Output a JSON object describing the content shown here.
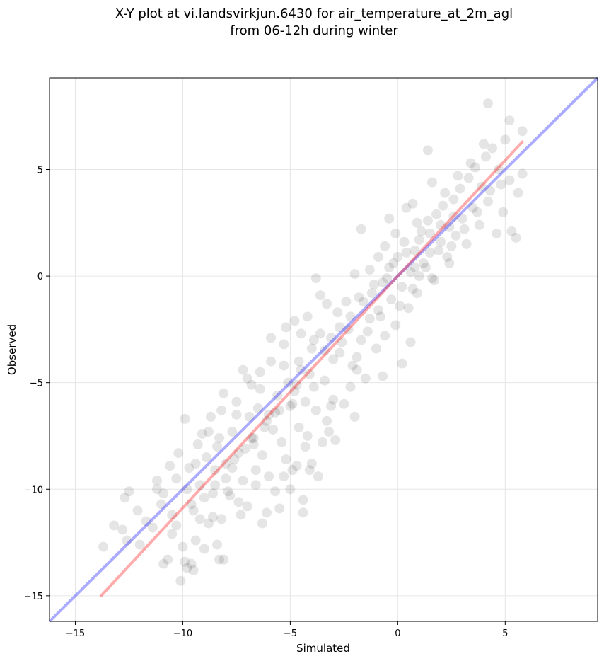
{
  "chart_data": {
    "type": "scatter",
    "title": [
      "X-Y plot at vi.landsvirkjun.6430 for air_temperature_at_2m_agl",
      "from 06-12h during winter"
    ],
    "xlabel": "Simulated",
    "ylabel": "Observed",
    "xlim": [
      -16.2,
      9.3
    ],
    "ylim": [
      -16.2,
      9.3
    ],
    "xticks": [
      -15,
      -10,
      -5,
      0,
      5
    ],
    "yticks": [
      -15,
      -10,
      -5,
      0,
      5
    ],
    "xtick_labels": [
      "−15",
      "−10",
      "−5",
      "0",
      "5"
    ],
    "ytick_labels": [
      "−15",
      "−10",
      "−5",
      "0",
      "5"
    ],
    "grid": true,
    "point_color": "#000000",
    "point_alpha": 0.1,
    "identity_line": {
      "color": "#0000ff",
      "alpha": 0.33,
      "x": [
        -16.2,
        9.3
      ],
      "y": [
        -16.2,
        9.3
      ]
    },
    "fit_line": {
      "color": "#ff0000",
      "alpha": 0.33,
      "x": [
        -13.8,
        5.8
      ],
      "y": [
        -15.0,
        6.3
      ]
    },
    "points": [
      [
        -13.7,
        -12.7
      ],
      [
        -13.2,
        -11.7
      ],
      [
        -12.8,
        -11.9
      ],
      [
        -12.6,
        -12.4
      ],
      [
        -12.5,
        -10.1
      ],
      [
        -12.7,
        -10.4
      ],
      [
        -12.1,
        -11.0
      ],
      [
        -12.0,
        -12.6
      ],
      [
        -11.7,
        -11.5
      ],
      [
        -11.4,
        -11.8
      ],
      [
        -11.2,
        -10.0
      ],
      [
        -11.0,
        -10.7
      ],
      [
        -10.9,
        -13.5
      ],
      [
        -10.7,
        -13.3
      ],
      [
        -10.5,
        -12.1
      ],
      [
        -10.3,
        -11.7
      ],
      [
        -10.1,
        -14.3
      ],
      [
        -10.0,
        -12.7
      ],
      [
        -9.9,
        -13.4
      ],
      [
        -9.8,
        -13.7
      ],
      [
        -9.6,
        -13.5
      ],
      [
        -9.5,
        -13.8
      ],
      [
        -10.2,
        -8.3
      ],
      [
        -9.9,
        -6.7
      ],
      [
        -9.4,
        -12.4
      ],
      [
        -9.2,
        -11.4
      ],
      [
        -9.0,
        -12.8
      ],
      [
        -8.8,
        -11.6
      ],
      [
        -8.6,
        -11.3
      ],
      [
        -8.4,
        -12.6
      ],
      [
        -8.3,
        -13.3
      ],
      [
        -8.1,
        -13.3
      ],
      [
        -10.5,
        -11.2
      ],
      [
        -10.3,
        -9.5
      ],
      [
        -9.8,
        -10.0
      ],
      [
        -9.7,
        -9.0
      ],
      [
        -9.4,
        -8.8
      ],
      [
        -9.2,
        -9.8
      ],
      [
        -9.1,
        -7.4
      ],
      [
        -8.9,
        -8.5
      ],
      [
        -8.7,
        -6.6
      ],
      [
        -8.5,
        -9.1
      ],
      [
        -8.3,
        -7.6
      ],
      [
        -8.2,
        -6.3
      ],
      [
        -8.0,
        -8.8
      ],
      [
        -7.9,
        -10.1
      ],
      [
        -7.7,
        -7.3
      ],
      [
        -7.5,
        -5.9
      ],
      [
        -7.4,
        -8.3
      ],
      [
        -7.2,
        -9.6
      ],
      [
        -7.0,
        -10.8
      ],
      [
        -6.9,
        -6.6
      ],
      [
        -6.7,
        -7.6
      ],
      [
        -6.6,
        -9.1
      ],
      [
        -6.4,
        -5.3
      ],
      [
        -6.3,
        -8.4
      ],
      [
        -6.1,
        -11.1
      ],
      [
        -6.0,
        -9.4
      ],
      [
        -5.8,
        -7.2
      ],
      [
        -5.7,
        -10.1
      ],
      [
        -5.5,
        -6.3
      ],
      [
        -5.3,
        -4.2
      ],
      [
        -5.2,
        -8.6
      ],
      [
        -5.0,
        -10.0
      ],
      [
        -4.9,
        -6.0
      ],
      [
        -4.7,
        -8.9
      ],
      [
        -4.6,
        -7.1
      ],
      [
        -4.4,
        -10.5
      ],
      [
        -4.3,
        -8.0
      ],
      [
        -4.1,
        -9.1
      ],
      [
        -7.2,
        -4.4
      ],
      [
        -6.8,
        -5.1
      ],
      [
        -6.4,
        -4.5
      ],
      [
        -6.1,
        -6.8
      ],
      [
        -5.9,
        -4.0
      ],
      [
        -5.6,
        -5.6
      ],
      [
        -5.3,
        -3.2
      ],
      [
        -5.1,
        -5.0
      ],
      [
        -4.8,
        -2.1
      ],
      [
        -4.5,
        -4.4
      ],
      [
        -4.3,
        -5.9
      ],
      [
        -4.0,
        -3.4
      ],
      [
        -3.8,
        -6.3
      ],
      [
        -3.6,
        -2.7
      ],
      [
        -3.4,
        -4.9
      ],
      [
        -3.2,
        -7.3
      ],
      [
        -3.0,
        -5.8
      ],
      [
        -2.8,
        -1.7
      ],
      [
        -2.7,
        -3.6
      ],
      [
        -2.5,
        -6.0
      ],
      [
        -2.3,
        -2.5
      ],
      [
        -2.1,
        -4.2
      ],
      [
        -2.0,
        -6.6
      ],
      [
        -1.8,
        -1.0
      ],
      [
        -1.7,
        -3.0
      ],
      [
        -1.5,
        -4.8
      ],
      [
        -1.3,
        -2.0
      ],
      [
        -1.2,
        -0.8
      ],
      [
        -1.0,
        -3.4
      ],
      [
        -0.9,
        -1.6
      ],
      [
        -0.7,
        -0.3
      ],
      [
        -0.6,
        -2.8
      ],
      [
        -0.4,
        0.4
      ],
      [
        -0.3,
        -1.1
      ],
      [
        -0.1,
        -2.3
      ],
      [
        0.0,
        0.9
      ],
      [
        0.2,
        -0.5
      ],
      [
        0.3,
        1.6
      ],
      [
        0.5,
        -1.5
      ],
      [
        0.6,
        0.2
      ],
      [
        0.8,
        1.2
      ],
      [
        0.9,
        -0.8
      ],
      [
        1.1,
        2.1
      ],
      [
        1.2,
        0.6
      ],
      [
        1.4,
        2.6
      ],
      [
        1.5,
        1.1
      ],
      [
        1.7,
        -0.2
      ],
      [
        1.8,
        2.9
      ],
      [
        2.0,
        1.6
      ],
      [
        2.1,
        3.3
      ],
      [
        2.3,
        0.9
      ],
      [
        2.4,
        2.3
      ],
      [
        2.6,
        3.6
      ],
      [
        2.7,
        1.9
      ],
      [
        2.9,
        4.1
      ],
      [
        3.0,
        2.7
      ],
      [
        3.2,
        1.5
      ],
      [
        3.3,
        4.6
      ],
      [
        3.5,
        3.2
      ],
      [
        3.6,
        5.1
      ],
      [
        3.8,
        2.4
      ],
      [
        3.9,
        4.2
      ],
      [
        4.1,
        5.6
      ],
      [
        4.2,
        3.5
      ],
      [
        4.4,
        6.0
      ],
      [
        4.6,
        2.0
      ],
      [
        4.7,
        5.0
      ],
      [
        4.9,
        3.0
      ],
      [
        5.0,
        6.4
      ],
      [
        5.2,
        4.5
      ],
      [
        5.3,
        2.1
      ],
      [
        5.5,
        1.8
      ],
      [
        5.6,
        3.9
      ],
      [
        5.8,
        4.8
      ],
      [
        4.2,
        8.1
      ],
      [
        5.2,
        7.3
      ],
      [
        5.8,
        6.8
      ],
      [
        1.4,
        5.9
      ],
      [
        -1.7,
        2.2
      ],
      [
        0.4,
        3.2
      ],
      [
        0.7,
        3.4
      ],
      [
        -0.4,
        2.7
      ],
      [
        -0.1,
        2.0
      ],
      [
        -0.6,
        1.4
      ],
      [
        -0.9,
        0.9
      ],
      [
        -1.3,
        0.3
      ],
      [
        1.0,
        0.0
      ],
      [
        1.6,
        -0.1
      ],
      [
        2.4,
        0.6
      ],
      [
        0.2,
        -4.1
      ],
      [
        -0.7,
        -4.7
      ],
      [
        0.6,
        -3.1
      ],
      [
        -1.9,
        -3.8
      ],
      [
        -3.0,
        -3.9
      ],
      [
        -3.9,
        -3.0
      ],
      [
        -4.5,
        -2.7
      ],
      [
        -2.4,
        -1.2
      ],
      [
        -3.3,
        -1.3
      ],
      [
        -4.2,
        -1.9
      ],
      [
        -3.6,
        -0.9
      ],
      [
        -3.8,
        -0.1
      ],
      [
        -2.0,
        0.1
      ],
      [
        -6.5,
        -6.2
      ],
      [
        -7.5,
        -6.5
      ],
      [
        -8.1,
        -5.5
      ],
      [
        -7.0,
        -4.8
      ],
      [
        -5.9,
        -2.9
      ],
      [
        -5.2,
        -2.4
      ],
      [
        -4.6,
        -4.0
      ],
      [
        -3.3,
        -6.8
      ],
      [
        -2.9,
        -7.7
      ],
      [
        -4.0,
        -8.8
      ],
      [
        -3.7,
        -9.4
      ],
      [
        -3.5,
        -7.8
      ],
      [
        -4.9,
        -9.1
      ],
      [
        -5.5,
        -10.9
      ],
      [
        -4.4,
        -11.1
      ],
      [
        -6.3,
        -11.6
      ],
      [
        -7.3,
        -11.2
      ],
      [
        -7.8,
        -10.3
      ],
      [
        -8.6,
        -10.2
      ],
      [
        -9.6,
        -10.7
      ],
      [
        -10.9,
        -10.2
      ],
      [
        -11.2,
        -9.6
      ],
      [
        -10.6,
        -8.9
      ],
      [
        -9.3,
        -7.9
      ],
      [
        -8.8,
        -7.3
      ],
      [
        -8.4,
        -8.0
      ],
      [
        -7.6,
        -8.6
      ],
      [
        -6.7,
        -7.9
      ],
      [
        -5.4,
        -7.8
      ],
      [
        -6.0,
        -6.5
      ],
      [
        -4.8,
        -5.4
      ],
      [
        -3.9,
        -5.2
      ],
      [
        -2.6,
        -3.1
      ],
      [
        -1.4,
        -2.6
      ],
      [
        -0.8,
        -1.9
      ],
      [
        0.1,
        -1.4
      ],
      [
        0.7,
        -0.6
      ],
      [
        1.3,
        0.4
      ],
      [
        1.9,
        1.2
      ],
      [
        2.5,
        1.4
      ],
      [
        3.1,
        2.2
      ],
      [
        3.7,
        3.0
      ],
      [
        4.3,
        4.0
      ],
      [
        4.8,
        4.3
      ],
      [
        2.2,
        3.9
      ],
      [
        2.8,
        4.7
      ],
      [
        3.4,
        5.3
      ],
      [
        4.0,
        6.2
      ],
      [
        1.6,
        4.4
      ],
      [
        0.9,
        2.5
      ],
      [
        1.0,
        1.7
      ],
      [
        1.5,
        2.0
      ],
      [
        2.0,
        2.4
      ],
      [
        2.6,
        2.8
      ],
      [
        0.4,
        1.1
      ],
      [
        0.8,
        0.4
      ],
      [
        -0.2,
        0.6
      ],
      [
        -0.5,
        -0.1
      ],
      [
        -1.1,
        -0.4
      ],
      [
        -1.6,
        -1.2
      ],
      [
        -2.2,
        -1.9
      ],
      [
        -2.7,
        -2.4
      ],
      [
        -3.1,
        -2.9
      ],
      [
        -3.4,
        -3.5
      ],
      [
        -4.1,
        -4.6
      ],
      [
        -4.7,
        -5.1
      ],
      [
        -5.0,
        -6.1
      ],
      [
        -5.7,
        -6.4
      ],
      [
        -6.2,
        -7.1
      ],
      [
        -6.8,
        -7.6
      ],
      [
        -7.1,
        -8.1
      ],
      [
        -7.7,
        -9.0
      ],
      [
        -8.0,
        -9.5
      ],
      [
        -8.5,
        -9.8
      ],
      [
        -9.0,
        -10.4
      ],
      [
        -9.5,
        -11.0
      ],
      [
        -5.3,
        -9.4
      ],
      [
        -4.2,
        -7.5
      ],
      [
        -3.1,
        -6.1
      ],
      [
        -2.2,
        -5.2
      ],
      [
        -1.9,
        -4.4
      ],
      [
        -6.6,
        -9.8
      ],
      [
        -7.4,
        -10.6
      ],
      [
        -8.2,
        -11.4
      ]
    ]
  }
}
